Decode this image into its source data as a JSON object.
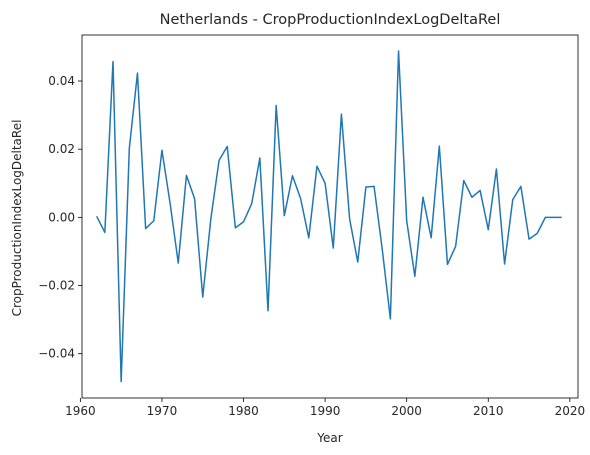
{
  "chart_data": {
    "type": "line",
    "title": "Netherlands - CropProductionIndexLogDeltaRel",
    "xlabel": "Year",
    "ylabel": "CropProductionIndexLogDeltaRel",
    "xlim": [
      1960.2,
      2021.0
    ],
    "ylim": [
      -0.053,
      0.0535
    ],
    "xticks": [
      1960,
      1970,
      1980,
      1990,
      2000,
      2010,
      2020
    ],
    "yticks": [
      -0.04,
      -0.02,
      0.0,
      0.02,
      0.04
    ],
    "ytick_labels": [
      "−0.04",
      "−0.02",
      "0.00",
      "0.02",
      "0.04"
    ],
    "grid": false,
    "series_color": "#1f77b4",
    "series": [
      {
        "x": [
          1962,
          1963,
          1964,
          1965,
          1966,
          1967,
          1968,
          1969,
          1970,
          1971,
          1972,
          1973,
          1974,
          1975,
          1976,
          1977,
          1978,
          1979,
          1980,
          1981,
          1982,
          1983,
          1984,
          1985,
          1986,
          1987,
          1988,
          1989,
          1990,
          1991,
          1992,
          1993,
          1994,
          1995,
          1996,
          1997,
          1998,
          1999,
          2000,
          2001,
          2002,
          2003,
          2004,
          2005,
          2006,
          2007,
          2008,
          2009,
          2010,
          2011,
          2012,
          2013,
          2014,
          2015,
          2016,
          2017,
          2018,
          2019
        ],
        "y": [
          0.0003,
          -0.0044,
          0.0457,
          -0.0482,
          0.0203,
          0.0423,
          -0.0033,
          -0.001,
          0.0197,
          0.0041,
          -0.0134,
          0.0123,
          0.0055,
          -0.0234,
          -0.0003,
          0.0167,
          0.0208,
          -0.0031,
          -0.0013,
          0.004,
          0.0174,
          -0.0274,
          0.0328,
          0.0005,
          0.0122,
          0.0055,
          -0.006,
          0.015,
          0.01,
          -0.009,
          0.0303,
          -0.0004,
          -0.0131,
          0.0089,
          0.0091,
          -0.0093,
          -0.0298,
          0.0488,
          -0.001,
          -0.0173,
          0.0059,
          -0.006,
          0.0209,
          -0.0138,
          -0.0085,
          0.0108,
          0.0059,
          0.0079,
          -0.0036,
          0.0142,
          -0.0137,
          0.0052,
          0.0091,
          -0.0064,
          -0.0047,
          0.0,
          0.0,
          0.0
        ]
      }
    ]
  }
}
